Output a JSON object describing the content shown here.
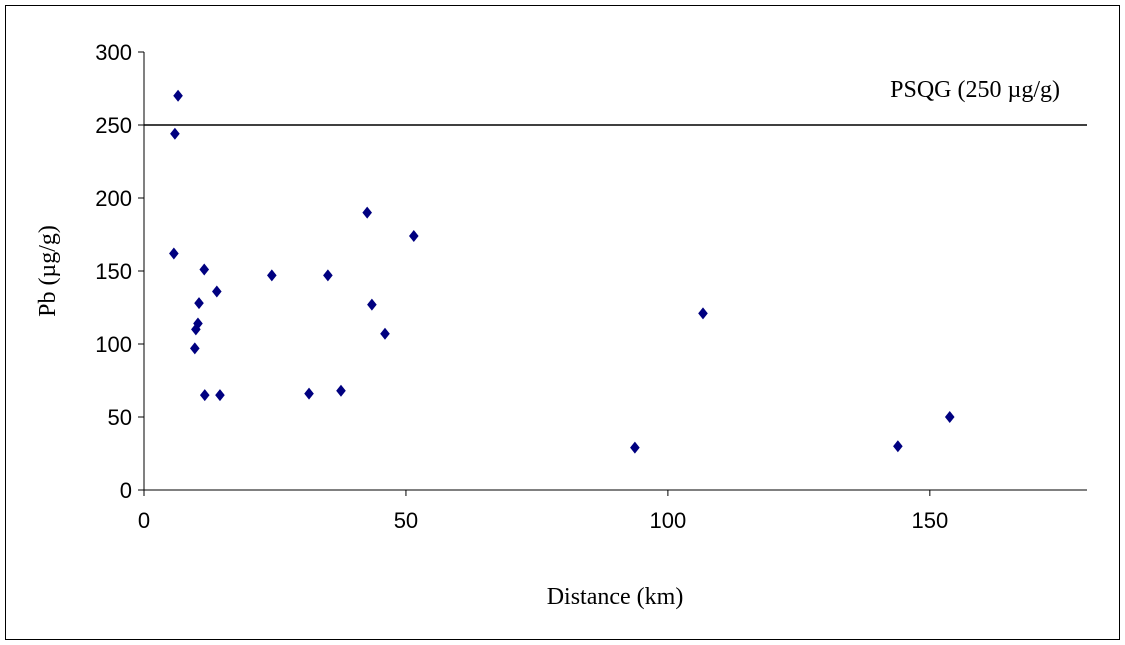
{
  "chart_data": {
    "type": "scatter",
    "x_label": "Distance (km)",
    "y_label": "Pb (µg/g)",
    "series": [
      {
        "color": "#000080",
        "x": [
          5.7,
          5.9,
          6.5,
          9.7,
          9.9,
          10.3,
          10.5,
          11.5,
          11.6,
          13.9,
          14.5,
          24.4,
          31.5,
          35.1,
          37.6,
          42.6,
          43.5,
          46,
          51.5,
          93.7,
          106.7,
          143.9,
          153.8
        ],
        "values": [
          162,
          244,
          270,
          97,
          110,
          114,
          128,
          151,
          65,
          136,
          65,
          147,
          66,
          147,
          68,
          190,
          127,
          107,
          174,
          29,
          121,
          30,
          50
        ]
      }
    ],
    "reference_line": {
      "value": 250,
      "label": "PSQG (250 µg/g)"
    },
    "xlim": [
      0,
      180
    ],
    "xticks": [
      0,
      50,
      100,
      150
    ],
    "ylim": [
      0,
      300
    ],
    "yticks": [
      0,
      50,
      100,
      150,
      200,
      250,
      300
    ]
  }
}
